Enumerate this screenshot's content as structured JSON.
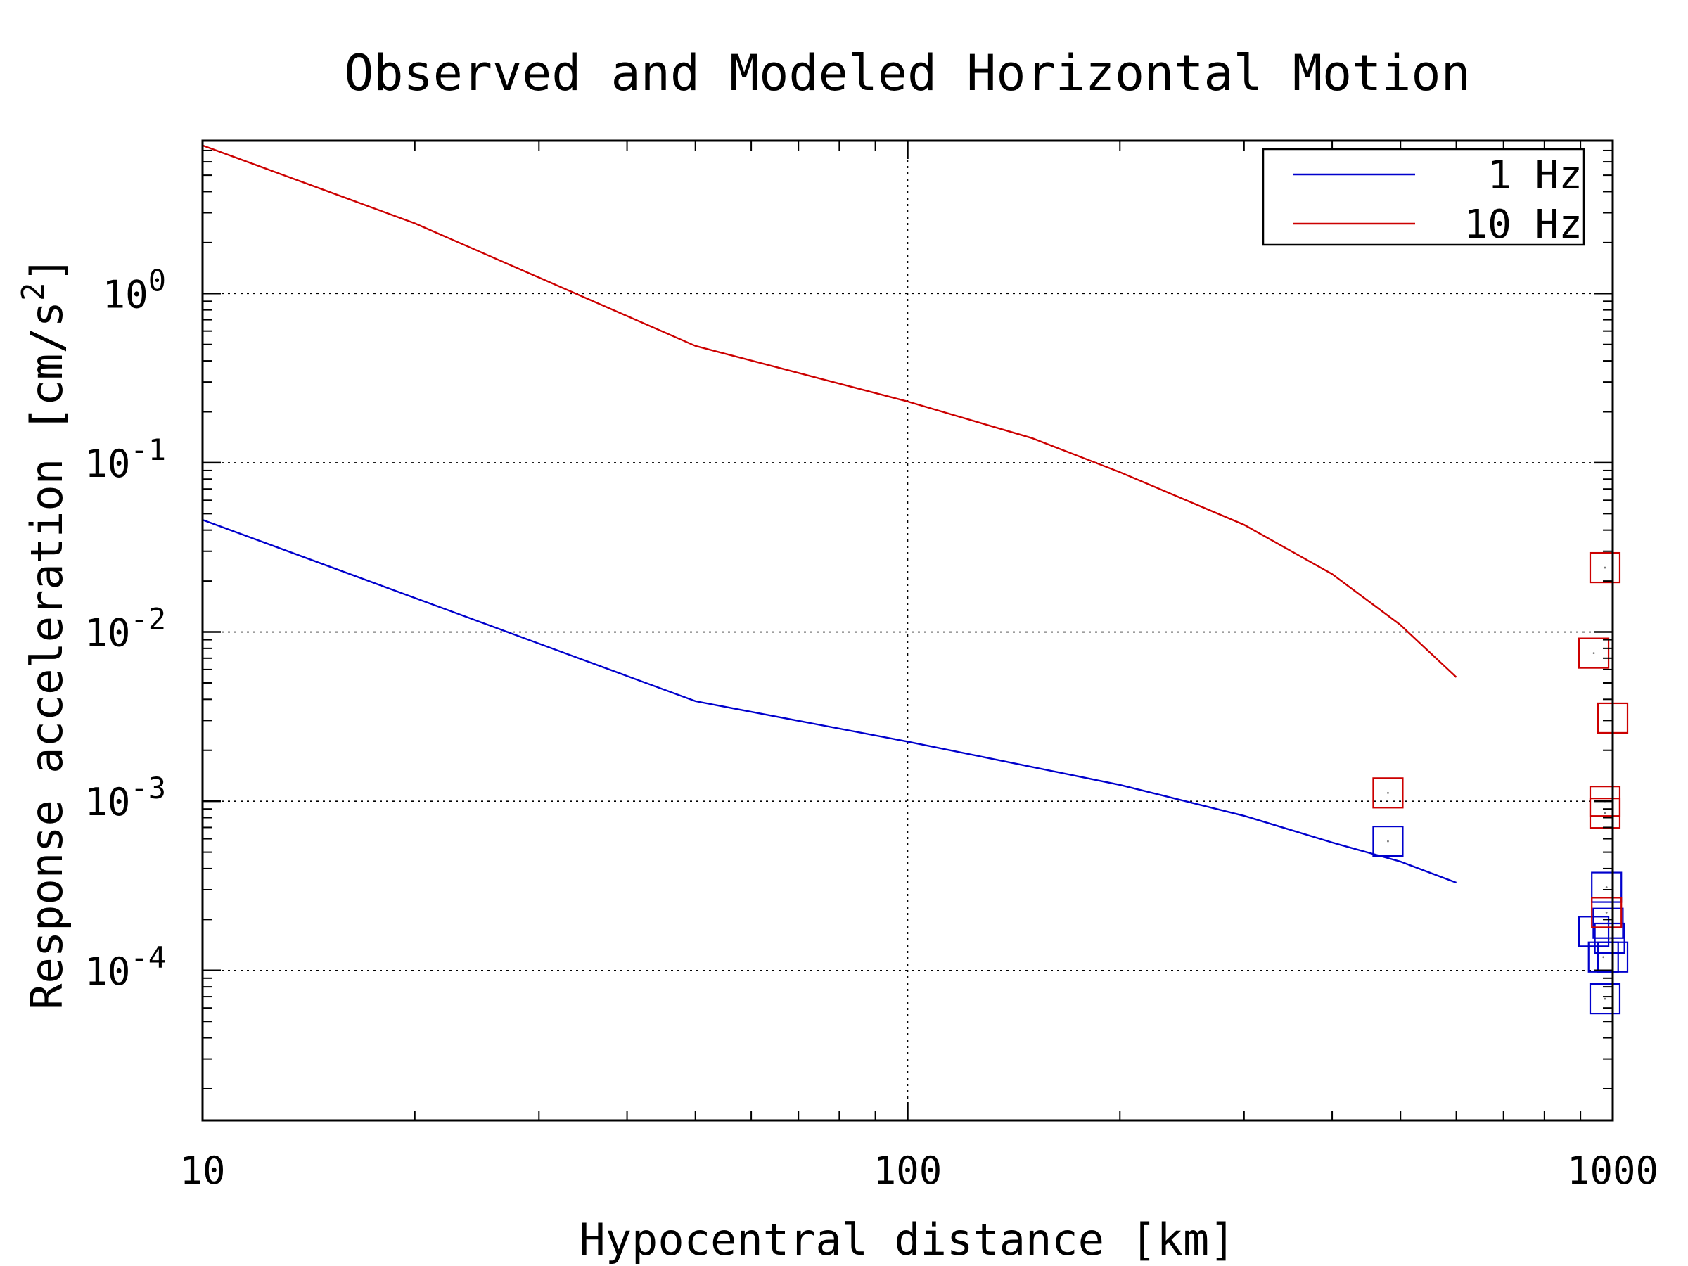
{
  "chart_data": {
    "type": "line",
    "title": "Observed and Modeled Horizontal Motion",
    "xlabel": "Hypocentral distance [km]",
    "ylabel": "Response acceleration [cm/s^2]",
    "xscale": "log",
    "yscale": "log",
    "xlim": [
      10,
      1000
    ],
    "ylim": [
      1.3e-05,
      8
    ],
    "xticks": [
      {
        "value": 10,
        "label": "10"
      },
      {
        "value": 100,
        "label": "100"
      },
      {
        "value": 1000,
        "label": "1000"
      }
    ],
    "yticks": [
      {
        "value": 1,
        "base": "10",
        "exp": "0"
      },
      {
        "value": 0.1,
        "base": "10",
        "exp": "-1"
      },
      {
        "value": 0.01,
        "base": "10",
        "exp": "-2"
      },
      {
        "value": 0.001,
        "base": "10",
        "exp": "-3"
      },
      {
        "value": 0.0001,
        "base": "10",
        "exp": "-4"
      }
    ],
    "grid": true,
    "legend": {
      "position": "top-right"
    },
    "series": [
      {
        "name": "1 Hz",
        "color": "#0000cc",
        "line": [
          {
            "x": 10,
            "y": 0.046
          },
          {
            "x": 50,
            "y": 0.0039
          },
          {
            "x": 100,
            "y": 0.00225
          },
          {
            "x": 200,
            "y": 0.00125
          },
          {
            "x": 300,
            "y": 0.00082
          },
          {
            "x": 400,
            "y": 0.00057
          },
          {
            "x": 500,
            "y": 0.00044
          },
          {
            "x": 600,
            "y": 0.00033
          }
        ],
        "observed": [
          {
            "x": 480,
            "y": 0.00058
          },
          {
            "x": 940,
            "y": 0.00017
          },
          {
            "x": 970,
            "y": 0.00012
          },
          {
            "x": 975,
            "y": 6.8e-05
          },
          {
            "x": 980,
            "y": 0.00031
          },
          {
            "x": 985,
            "y": 0.00019
          },
          {
            "x": 990,
            "y": 0.000155
          },
          {
            "x": 1000,
            "y": 0.00012
          }
        ]
      },
      {
        "name": "10 Hz",
        "color": "#cc0000",
        "line": [
          {
            "x": 10,
            "y": 7.5
          },
          {
            "x": 20,
            "y": 2.6
          },
          {
            "x": 50,
            "y": 0.49
          },
          {
            "x": 100,
            "y": 0.23
          },
          {
            "x": 150,
            "y": 0.14
          },
          {
            "x": 200,
            "y": 0.088
          },
          {
            "x": 300,
            "y": 0.043
          },
          {
            "x": 400,
            "y": 0.022
          },
          {
            "x": 500,
            "y": 0.011
          },
          {
            "x": 600,
            "y": 0.0054
          }
        ],
        "observed": [
          {
            "x": 480,
            "y": 0.00112
          },
          {
            "x": 940,
            "y": 0.0075
          },
          {
            "x": 975,
            "y": 0.024
          },
          {
            "x": 975,
            "y": 0.001
          },
          {
            "x": 975,
            "y": 0.00085
          },
          {
            "x": 980,
            "y": 0.00022
          },
          {
            "x": 1000,
            "y": 0.0031
          }
        ]
      }
    ]
  }
}
